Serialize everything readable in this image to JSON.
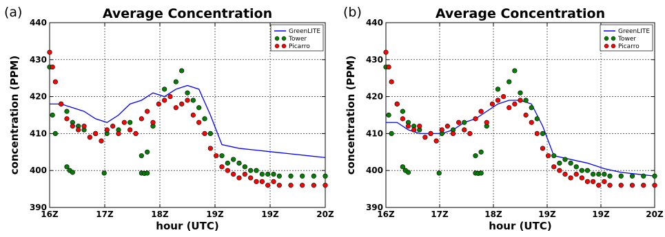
{
  "chart_data": [
    {
      "panel": "(a)",
      "type": "scatter",
      "title": "Average Concentration",
      "xlabel": "hour (UTC)",
      "ylabel": "concentration (PPM)",
      "x_ticks": [
        "16Z",
        "17Z",
        "18Z",
        "19Z",
        "19Z",
        "20Z"
      ],
      "y_ticks": [
        390,
        400,
        410,
        420,
        430,
        440
      ],
      "xlim": [
        16,
        20.8
      ],
      "ylim": [
        390,
        440
      ],
      "grid": true,
      "legend_placement": "top-right",
      "series": [
        {
          "name": "GreenLITE",
          "kind": "line",
          "color": "#0000ff",
          "x": [
            16.0,
            16.2,
            16.4,
            16.6,
            16.8,
            17.0,
            17.2,
            17.4,
            17.6,
            17.8,
            18.0,
            18.2,
            18.4,
            18.6,
            18.8,
            19.0,
            19.3,
            19.6,
            19.9,
            20.2,
            20.5,
            20.8
          ],
          "y": [
            418,
            418,
            417,
            416,
            414,
            413,
            415,
            418,
            419,
            421,
            420,
            422,
            423,
            422,
            415,
            407,
            406,
            405.5,
            405,
            404.5,
            404,
            403.5
          ]
        },
        {
          "name": "Tower",
          "kind": "scatter",
          "color": "#007f00",
          "x": [
            16.0,
            16.05,
            16.1,
            16.2,
            16.3,
            16.4,
            16.5,
            16.6,
            16.8,
            17.0,
            17.2,
            17.4,
            17.6,
            17.7,
            17.8,
            18.0,
            18.2,
            18.3,
            18.4,
            18.5,
            18.6,
            18.7,
            18.8,
            19.0,
            19.1,
            19.2,
            19.3,
            19.4,
            19.5,
            19.6,
            19.7,
            19.8,
            19.9,
            20.0,
            20.2,
            20.4,
            20.6,
            20.8
          ],
          "y": [
            428,
            415,
            410,
            418,
            416,
            413,
            412,
            411,
            410,
            410,
            411,
            413,
            404,
            405,
            412,
            422,
            424,
            427,
            421,
            419,
            417,
            414,
            410,
            404,
            402,
            403,
            402,
            401,
            400,
            400,
            399,
            399,
            399,
            398.5,
            398.5,
            398.5,
            398.5,
            398.5
          ]
        },
        {
          "name": "Tower",
          "kind": "scatter",
          "color": "#007f00",
          "x": [
            16.3,
            16.35,
            16.4,
            16.95,
            17.6,
            17.65,
            17.7
          ],
          "y": [
            401,
            400,
            399.5,
            399.3,
            399.3,
            399.2,
            399.3
          ]
        },
        {
          "name": "Picarro",
          "kind": "scatter",
          "color": "#ff0000",
          "x": [
            16.0,
            16.05,
            16.1,
            16.2,
            16.3,
            16.4,
            16.5,
            16.6,
            16.7,
            16.8,
            16.9,
            17.0,
            17.1,
            17.2,
            17.3,
            17.4,
            17.5,
            17.6,
            17.7,
            17.8,
            17.9,
            18.0,
            18.1,
            18.2,
            18.3,
            18.4,
            18.5,
            18.6,
            18.7,
            18.8,
            18.9,
            19.0,
            19.1,
            19.2,
            19.3,
            19.4,
            19.5,
            19.6,
            19.7,
            19.8,
            19.9,
            20.0,
            20.2,
            20.4,
            20.6,
            20.8
          ],
          "y": [
            432,
            428,
            424,
            418,
            414,
            412,
            411,
            412,
            409,
            410,
            408,
            411,
            412,
            410,
            413,
            411,
            410,
            414,
            416,
            413,
            418,
            419,
            420,
            417,
            418,
            419,
            415,
            413,
            410,
            406,
            404,
            401,
            400,
            399,
            398,
            399,
            398,
            397,
            397,
            396,
            397,
            396,
            396,
            396,
            396,
            396
          ]
        }
      ]
    },
    {
      "panel": "(b)",
      "type": "scatter",
      "title": "Average Concentration",
      "xlabel": "hour (UTC)",
      "ylabel": "concentration (PPM)",
      "x_ticks": [
        "16Z",
        "17Z",
        "18Z",
        "19Z",
        "19Z",
        "20Z"
      ],
      "y_ticks": [
        390,
        400,
        410,
        420,
        430,
        440
      ],
      "xlim": [
        16,
        20.8
      ],
      "ylim": [
        390,
        440
      ],
      "grid": true,
      "legend_placement": "top-right",
      "series": [
        {
          "name": "GreenLITE",
          "kind": "line",
          "color": "#0000ff",
          "x": [
            16.0,
            16.2,
            16.4,
            16.6,
            16.8,
            17.0,
            17.2,
            17.4,
            17.6,
            17.8,
            18.0,
            18.2,
            18.4,
            18.6,
            18.8,
            19.0,
            19.3,
            19.6,
            19.9,
            20.2,
            20.5,
            20.8
          ],
          "y": [
            413,
            413,
            411,
            410,
            410,
            410,
            411,
            413,
            414,
            416,
            418,
            419,
            419,
            418,
            412,
            404,
            403,
            402,
            400.5,
            399.5,
            399,
            398.5
          ]
        },
        {
          "name": "Tower",
          "kind": "scatter",
          "color": "#007f00",
          "x": [
            16.0,
            16.05,
            16.1,
            16.2,
            16.3,
            16.4,
            16.5,
            16.6,
            16.8,
            17.0,
            17.2,
            17.4,
            17.6,
            17.7,
            17.8,
            18.0,
            18.2,
            18.3,
            18.4,
            18.5,
            18.6,
            18.7,
            18.8,
            19.0,
            19.1,
            19.2,
            19.3,
            19.4,
            19.5,
            19.6,
            19.7,
            19.8,
            19.9,
            20.0,
            20.2,
            20.4,
            20.6,
            20.8
          ],
          "y": [
            428,
            415,
            410,
            418,
            416,
            413,
            412,
            411,
            410,
            410,
            411,
            413,
            404,
            405,
            412,
            422,
            424,
            427,
            421,
            419,
            417,
            414,
            410,
            404,
            402,
            403,
            402,
            401,
            400,
            400,
            399,
            399,
            399,
            398.5,
            398.5,
            398.5,
            398.5,
            398.5
          ]
        },
        {
          "name": "Tower",
          "kind": "scatter",
          "color": "#007f00",
          "x": [
            16.3,
            16.35,
            16.4,
            16.95,
            17.6,
            17.65,
            17.7
          ],
          "y": [
            401,
            400,
            399.5,
            399.3,
            399.3,
            399.2,
            399.3
          ]
        },
        {
          "name": "Picarro",
          "kind": "scatter",
          "color": "#ff0000",
          "x": [
            16.0,
            16.05,
            16.1,
            16.2,
            16.3,
            16.4,
            16.5,
            16.6,
            16.7,
            16.8,
            16.9,
            17.0,
            17.1,
            17.2,
            17.3,
            17.4,
            17.5,
            17.6,
            17.7,
            17.8,
            17.9,
            18.0,
            18.1,
            18.2,
            18.3,
            18.4,
            18.5,
            18.6,
            18.7,
            18.8,
            18.9,
            19.0,
            19.1,
            19.2,
            19.3,
            19.4,
            19.5,
            19.6,
            19.7,
            19.8,
            19.9,
            20.0,
            20.2,
            20.4,
            20.6,
            20.8
          ],
          "y": [
            432,
            428,
            424,
            418,
            414,
            412,
            411,
            412,
            409,
            410,
            408,
            411,
            412,
            410,
            413,
            411,
            410,
            414,
            416,
            413,
            418,
            419,
            420,
            417,
            418,
            419,
            415,
            413,
            410,
            406,
            404,
            401,
            400,
            399,
            398,
            399,
            398,
            397,
            397,
            396,
            397,
            396,
            396,
            396,
            396,
            396
          ]
        }
      ]
    }
  ]
}
